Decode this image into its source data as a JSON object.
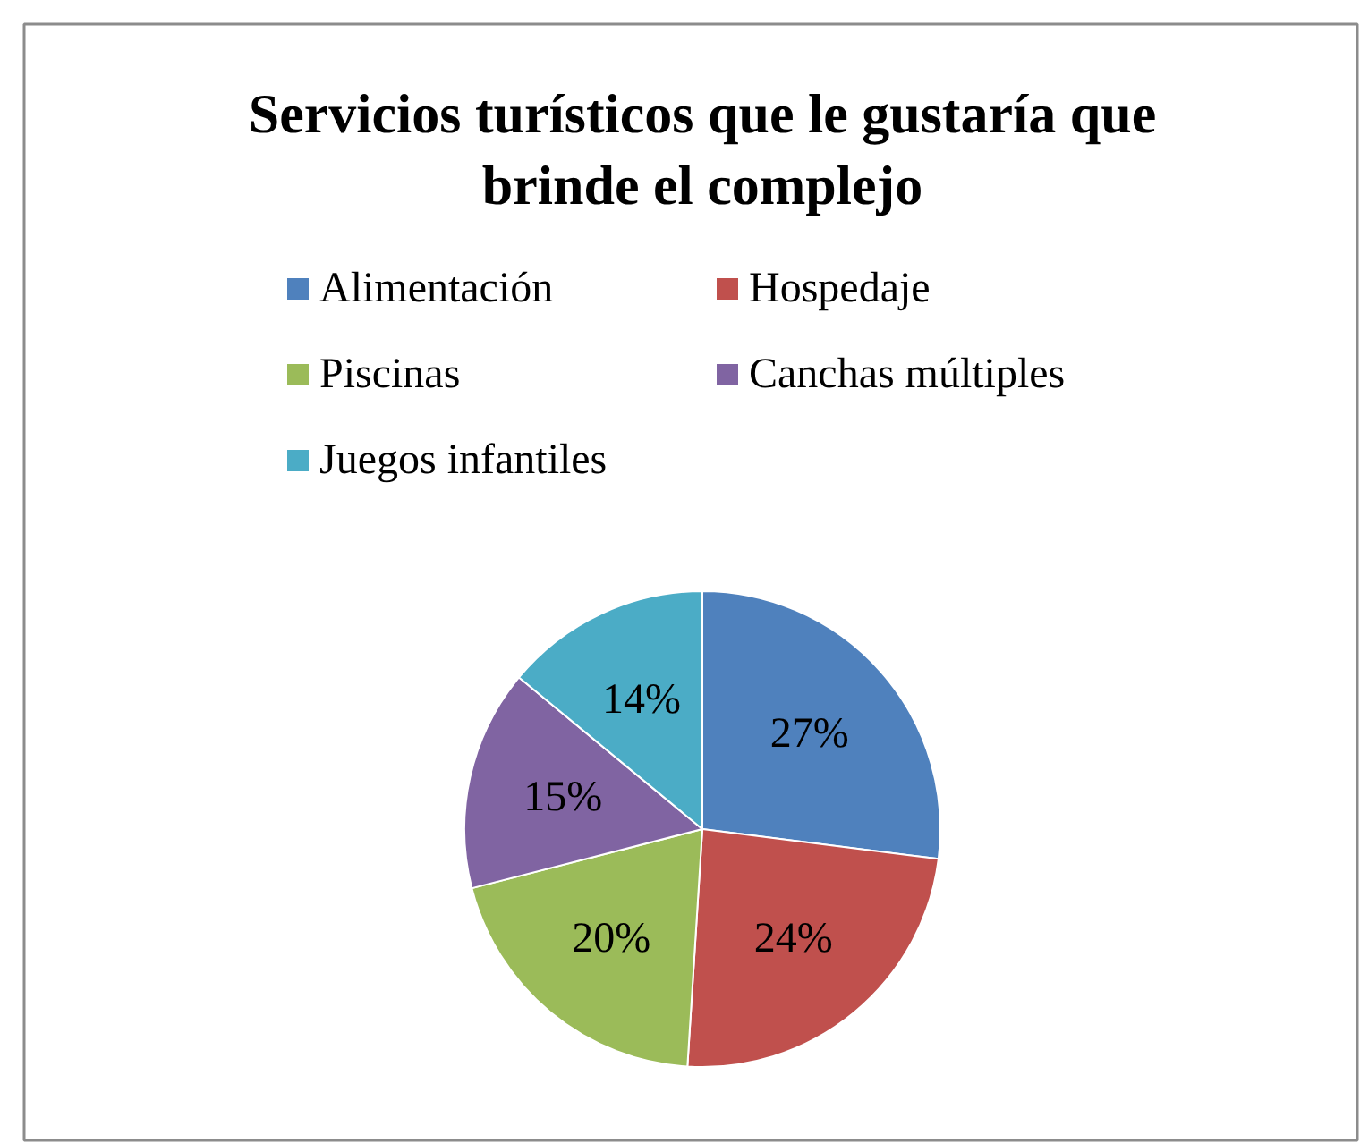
{
  "chart_data": {
    "type": "pie",
    "title": "Servicios turísticos que le gustaría que brinde el complejo",
    "categories": [
      "Alimentación",
      "Hospedaje",
      "Piscinas",
      "Canchas múltiples",
      "Juegos infantiles"
    ],
    "values": [
      27,
      24,
      20,
      15,
      14
    ],
    "colors": [
      "#4f81bd",
      "#c0504d",
      "#9bbb59",
      "#8064a2",
      "#4bacc6"
    ],
    "value_labels": [
      "27%",
      "24%",
      "20%",
      "15%",
      "14%"
    ],
    "legend": "top"
  }
}
